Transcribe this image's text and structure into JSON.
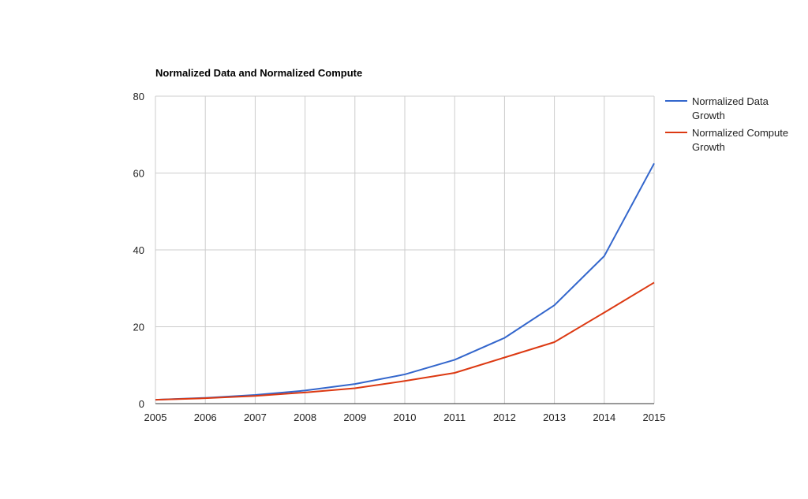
{
  "chart_data": {
    "type": "line",
    "title": "Normalized Data and Normalized Compute",
    "xlabel": "",
    "ylabel": "",
    "x": [
      "2005",
      "2006",
      "2007",
      "2008",
      "2009",
      "2010",
      "2011",
      "2012",
      "2013",
      "2014",
      "2015"
    ],
    "ylim": [
      0,
      80
    ],
    "yticks": [
      "0",
      "20",
      "40",
      "60",
      "80"
    ],
    "grid": true,
    "legend_position": "right",
    "series": [
      {
        "name": "Normalized Data Growth",
        "name_lines": [
          "Normalized Data",
          "Growth"
        ],
        "color": "#3366cc",
        "values": [
          1,
          1.5,
          2.25,
          3.4,
          5.1,
          7.6,
          11.4,
          17.1,
          25.6,
          38.4,
          62.5
        ]
      },
      {
        "name": "Normalized Compute Growth",
        "name_lines": [
          "Normalized Compute",
          "Growth"
        ],
        "color": "#dc3912",
        "values": [
          1,
          1.4,
          2.0,
          2.9,
          4.0,
          5.9,
          8.0,
          12.0,
          16.0,
          23.7,
          31.5
        ]
      }
    ]
  }
}
